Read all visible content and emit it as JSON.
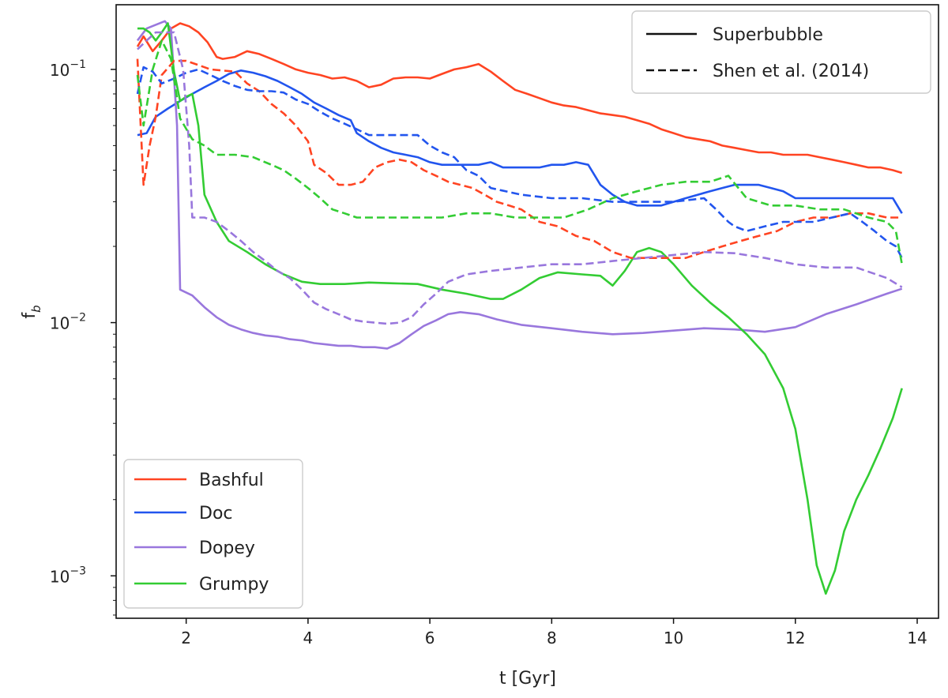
{
  "chart_data": {
    "type": "line",
    "title": "",
    "xlabel": "t [Gyr]",
    "ylabel_main": "f",
    "ylabel_sub": "b",
    "xlim": [
      0.85,
      14.35
    ],
    "ylim": [
      0.00068,
      0.18
    ],
    "yscale": "log",
    "xticks": [
      2,
      4,
      6,
      8,
      10,
      12,
      14
    ],
    "yticks": [
      {
        "value": 0.1,
        "base": "10",
        "exp": "−1"
      },
      {
        "value": 0.01,
        "base": "10",
        "exp": "−2"
      },
      {
        "value": 0.001,
        "base": "10",
        "exp": "−3"
      }
    ],
    "style_legend": {
      "position": "upper right",
      "entries": [
        {
          "label": "Superbubble",
          "dash": "solid"
        },
        {
          "label": "Shen et al. (2014)",
          "dash": "dashed"
        }
      ]
    },
    "color_legend": {
      "position": "lower left",
      "entries": [
        {
          "label": "Bashful",
          "color": "#ff4422"
        },
        {
          "label": "Doc",
          "color": "#2255ee"
        },
        {
          "label": "Dopey",
          "color": "#9977dd"
        },
        {
          "label": "Grumpy",
          "color": "#33cc33"
        }
      ]
    },
    "series": [
      {
        "name": "Bashful",
        "style": "solid",
        "color": "#ff4422",
        "x": [
          1.2,
          1.3,
          1.45,
          1.6,
          1.75,
          1.9,
          2.05,
          2.2,
          2.35,
          2.5,
          2.6,
          2.8,
          3.0,
          3.2,
          3.4,
          3.6,
          3.8,
          4.0,
          4.2,
          4.4,
          4.6,
          4.8,
          5.0,
          5.2,
          5.4,
          5.6,
          5.8,
          6.0,
          6.2,
          6.4,
          6.6,
          6.8,
          7.0,
          7.2,
          7.4,
          7.6,
          7.8,
          8.0,
          8.2,
          8.4,
          8.6,
          8.8,
          9.0,
          9.2,
          9.4,
          9.6,
          9.8,
          10.0,
          10.2,
          10.4,
          10.6,
          10.8,
          11.0,
          11.2,
          11.4,
          11.6,
          11.8,
          12.0,
          12.2,
          12.4,
          12.6,
          12.8,
          13.0,
          13.2,
          13.4,
          13.6,
          13.75
        ],
        "y": [
          0.123,
          0.135,
          0.118,
          0.13,
          0.145,
          0.152,
          0.148,
          0.14,
          0.128,
          0.112,
          0.11,
          0.112,
          0.118,
          0.115,
          0.11,
          0.105,
          0.1,
          0.097,
          0.095,
          0.092,
          0.093,
          0.09,
          0.085,
          0.087,
          0.092,
          0.093,
          0.093,
          0.092,
          0.096,
          0.1,
          0.102,
          0.105,
          0.098,
          0.09,
          0.083,
          0.08,
          0.077,
          0.074,
          0.072,
          0.071,
          0.069,
          0.067,
          0.066,
          0.065,
          0.063,
          0.061,
          0.058,
          0.056,
          0.054,
          0.053,
          0.052,
          0.05,
          0.049,
          0.048,
          0.047,
          0.047,
          0.046,
          0.046,
          0.046,
          0.045,
          0.044,
          0.043,
          0.042,
          0.041,
          0.041,
          0.04,
          0.039
        ]
      },
      {
        "name": "Doc",
        "style": "solid",
        "color": "#2255ee",
        "x": [
          1.2,
          1.35,
          1.5,
          1.7,
          1.9,
          2.1,
          2.3,
          2.5,
          2.7,
          2.9,
          3.1,
          3.3,
          3.5,
          3.7,
          3.9,
          4.1,
          4.3,
          4.5,
          4.7,
          4.8,
          5.0,
          5.2,
          5.4,
          5.6,
          5.8,
          6.0,
          6.2,
          6.4,
          6.6,
          6.8,
          7.0,
          7.2,
          7.4,
          7.6,
          7.8,
          8.0,
          8.2,
          8.4,
          8.6,
          8.8,
          9.0,
          9.2,
          9.4,
          9.6,
          9.8,
          10.0,
          10.2,
          10.4,
          10.6,
          10.8,
          11.0,
          11.2,
          11.4,
          11.6,
          11.8,
          12.0,
          12.2,
          12.4,
          12.6,
          12.8,
          13.0,
          13.2,
          13.4,
          13.6,
          13.75
        ],
        "y": [
          0.055,
          0.056,
          0.065,
          0.07,
          0.075,
          0.08,
          0.085,
          0.09,
          0.096,
          0.099,
          0.097,
          0.094,
          0.09,
          0.085,
          0.08,
          0.074,
          0.07,
          0.066,
          0.063,
          0.056,
          0.052,
          0.049,
          0.047,
          0.046,
          0.045,
          0.043,
          0.042,
          0.042,
          0.042,
          0.042,
          0.043,
          0.041,
          0.041,
          0.041,
          0.041,
          0.042,
          0.042,
          0.043,
          0.042,
          0.035,
          0.032,
          0.03,
          0.029,
          0.029,
          0.029,
          0.03,
          0.031,
          0.032,
          0.033,
          0.034,
          0.035,
          0.035,
          0.035,
          0.034,
          0.033,
          0.031,
          0.031,
          0.031,
          0.031,
          0.031,
          0.031,
          0.031,
          0.031,
          0.031,
          0.027
        ]
      },
      {
        "name": "Dopey",
        "style": "solid",
        "color": "#9977dd",
        "x": [
          1.2,
          1.35,
          1.5,
          1.65,
          1.75,
          1.85,
          1.9,
          2.1,
          2.3,
          2.5,
          2.7,
          2.9,
          3.1,
          3.3,
          3.5,
          3.7,
          3.9,
          4.1,
          4.3,
          4.5,
          4.7,
          4.9,
          5.1,
          5.3,
          5.5,
          5.7,
          5.9,
          6.1,
          6.3,
          6.5,
          6.8,
          7.1,
          7.5,
          8.0,
          8.5,
          9.0,
          9.5,
          10.0,
          10.5,
          11.0,
          11.5,
          12.0,
          12.5,
          13.0,
          13.5,
          13.75
        ],
        "y": [
          0.13,
          0.145,
          0.15,
          0.155,
          0.145,
          0.06,
          0.0135,
          0.0128,
          0.0115,
          0.0105,
          0.0098,
          0.0094,
          0.0091,
          0.0089,
          0.0088,
          0.0086,
          0.0085,
          0.0083,
          0.0082,
          0.0081,
          0.0081,
          0.008,
          0.008,
          0.0079,
          0.0083,
          0.009,
          0.0097,
          0.0102,
          0.0108,
          0.011,
          0.0108,
          0.0103,
          0.0098,
          0.0095,
          0.0092,
          0.009,
          0.0091,
          0.0093,
          0.0095,
          0.0094,
          0.0092,
          0.0096,
          0.0108,
          0.0118,
          0.013,
          0.0136
        ]
      },
      {
        "name": "Grumpy",
        "style": "solid",
        "color": "#33cc33",
        "x": [
          1.2,
          1.3,
          1.4,
          1.5,
          1.6,
          1.7,
          1.8,
          1.9,
          2.0,
          2.1,
          2.2,
          2.3,
          2.5,
          2.7,
          3.0,
          3.3,
          3.6,
          3.9,
          4.2,
          4.6,
          5.0,
          5.4,
          5.8,
          6.2,
          6.6,
          7.0,
          7.2,
          7.5,
          7.8,
          8.1,
          8.5,
          8.8,
          9.0,
          9.2,
          9.4,
          9.6,
          9.8,
          10.0,
          10.3,
          10.6,
          10.9,
          11.2,
          11.5,
          11.8,
          12.0,
          12.2,
          12.35,
          12.5,
          12.65,
          12.8,
          13.0,
          13.2,
          13.4,
          13.6,
          13.75
        ],
        "y": [
          0.145,
          0.145,
          0.14,
          0.13,
          0.14,
          0.152,
          0.098,
          0.075,
          0.078,
          0.08,
          0.06,
          0.032,
          0.025,
          0.021,
          0.019,
          0.017,
          0.0155,
          0.0145,
          0.0142,
          0.0142,
          0.0144,
          0.0143,
          0.0142,
          0.0135,
          0.013,
          0.0124,
          0.0124,
          0.0135,
          0.015,
          0.0158,
          0.0155,
          0.0153,
          0.014,
          0.016,
          0.019,
          0.0197,
          0.019,
          0.017,
          0.014,
          0.012,
          0.0105,
          0.009,
          0.0075,
          0.0055,
          0.0038,
          0.002,
          0.0011,
          0.00085,
          0.00105,
          0.0015,
          0.002,
          0.0025,
          0.0032,
          0.0042,
          0.0055
        ]
      },
      {
        "name": "Bashful",
        "style": "dashed",
        "color": "#ff4422",
        "x": [
          1.2,
          1.3,
          1.4,
          1.5,
          1.6,
          1.8,
          2.0,
          2.2,
          2.4,
          2.6,
          2.8,
          3.0,
          3.2,
          3.4,
          3.6,
          3.8,
          4.0,
          4.1,
          4.3,
          4.5,
          4.7,
          4.9,
          5.1,
          5.3,
          5.5,
          5.7,
          5.9,
          6.1,
          6.3,
          6.5,
          6.7,
          6.9,
          7.1,
          7.3,
          7.5,
          7.8,
          8.1,
          8.4,
          8.7,
          9.0,
          9.3,
          9.6,
          9.9,
          10.2,
          10.5,
          10.8,
          11.1,
          11.4,
          11.7,
          12.0,
          12.3,
          12.6,
          12.9,
          13.2,
          13.5,
          13.75
        ],
        "y": [
          0.11,
          0.035,
          0.05,
          0.065,
          0.095,
          0.108,
          0.108,
          0.104,
          0.1,
          0.099,
          0.098,
          0.088,
          0.082,
          0.073,
          0.067,
          0.06,
          0.052,
          0.042,
          0.039,
          0.035,
          0.035,
          0.036,
          0.041,
          0.043,
          0.044,
          0.043,
          0.04,
          0.038,
          0.036,
          0.035,
          0.034,
          0.032,
          0.03,
          0.029,
          0.028,
          0.025,
          0.024,
          0.022,
          0.021,
          0.019,
          0.018,
          0.018,
          0.018,
          0.018,
          0.019,
          0.02,
          0.021,
          0.022,
          0.023,
          0.025,
          0.026,
          0.026,
          0.027,
          0.027,
          0.026,
          0.026
        ]
      },
      {
        "name": "Doc",
        "style": "dashed",
        "color": "#2255ee",
        "x": [
          1.2,
          1.3,
          1.45,
          1.6,
          1.8,
          2.0,
          2.2,
          2.4,
          2.6,
          2.8,
          3.0,
          3.2,
          3.4,
          3.6,
          3.8,
          4.0,
          4.2,
          4.4,
          4.6,
          4.8,
          5.0,
          5.2,
          5.4,
          5.6,
          5.8,
          6.0,
          6.2,
          6.4,
          6.6,
          6.8,
          7.0,
          7.5,
          8.0,
          8.5,
          9.0,
          9.5,
          10.0,
          10.5,
          10.7,
          10.9,
          11.0,
          11.2,
          11.5,
          11.8,
          12.0,
          12.3,
          12.6,
          12.9,
          13.1,
          13.3,
          13.5,
          13.65,
          13.75
        ],
        "y": [
          0.08,
          0.102,
          0.098,
          0.088,
          0.092,
          0.097,
          0.1,
          0.095,
          0.09,
          0.086,
          0.083,
          0.082,
          0.082,
          0.081,
          0.076,
          0.073,
          0.068,
          0.064,
          0.061,
          0.058,
          0.055,
          0.055,
          0.055,
          0.055,
          0.055,
          0.05,
          0.047,
          0.045,
          0.04,
          0.038,
          0.034,
          0.032,
          0.031,
          0.031,
          0.03,
          0.03,
          0.03,
          0.031,
          0.028,
          0.025,
          0.024,
          0.023,
          0.024,
          0.025,
          0.025,
          0.025,
          0.026,
          0.027,
          0.025,
          0.023,
          0.021,
          0.02,
          0.018
        ]
      },
      {
        "name": "Dopey",
        "style": "dashed",
        "color": "#9977dd",
        "x": [
          1.2,
          1.35,
          1.5,
          1.65,
          1.8,
          1.95,
          2.05,
          2.1,
          2.3,
          2.5,
          2.7,
          2.9,
          3.1,
          3.3,
          3.5,
          3.7,
          3.9,
          4.1,
          4.3,
          4.5,
          4.7,
          4.9,
          5.1,
          5.3,
          5.5,
          5.7,
          5.9,
          6.1,
          6.3,
          6.6,
          7.0,
          7.5,
          8.0,
          8.5,
          9.0,
          9.5,
          10.0,
          10.5,
          11.0,
          11.5,
          12.0,
          12.5,
          13.0,
          13.5,
          13.75
        ],
        "y": [
          0.12,
          0.13,
          0.14,
          0.14,
          0.14,
          0.1,
          0.05,
          0.026,
          0.026,
          0.025,
          0.023,
          0.021,
          0.019,
          0.0175,
          0.016,
          0.015,
          0.0135,
          0.012,
          0.0113,
          0.0108,
          0.0103,
          0.0101,
          0.01,
          0.0099,
          0.01,
          0.0105,
          0.0118,
          0.013,
          0.0145,
          0.0155,
          0.016,
          0.0165,
          0.017,
          0.017,
          0.0175,
          0.018,
          0.0185,
          0.019,
          0.0188,
          0.018,
          0.017,
          0.0165,
          0.0165,
          0.015,
          0.0138
        ]
      },
      {
        "name": "Grumpy",
        "style": "dashed",
        "color": "#33cc33",
        "x": [
          1.2,
          1.3,
          1.45,
          1.6,
          1.75,
          1.9,
          2.1,
          2.3,
          2.5,
          2.8,
          3.1,
          3.4,
          3.6,
          3.8,
          4.0,
          4.2,
          4.4,
          4.6,
          4.8,
          5.0,
          5.4,
          5.8,
          6.2,
          6.6,
          7.0,
          7.4,
          7.8,
          8.2,
          8.6,
          9.0,
          9.4,
          9.8,
          10.2,
          10.6,
          10.9,
          11.2,
          11.6,
          12.0,
          12.4,
          12.8,
          13.2,
          13.5,
          13.65,
          13.75
        ],
        "y": [
          0.095,
          0.06,
          0.1,
          0.13,
          0.11,
          0.064,
          0.053,
          0.05,
          0.046,
          0.046,
          0.045,
          0.042,
          0.04,
          0.037,
          0.034,
          0.031,
          0.028,
          0.027,
          0.026,
          0.026,
          0.026,
          0.026,
          0.026,
          0.027,
          0.027,
          0.026,
          0.026,
          0.026,
          0.028,
          0.031,
          0.033,
          0.035,
          0.036,
          0.036,
          0.038,
          0.031,
          0.029,
          0.029,
          0.028,
          0.028,
          0.026,
          0.025,
          0.023,
          0.017
        ]
      }
    ]
  }
}
